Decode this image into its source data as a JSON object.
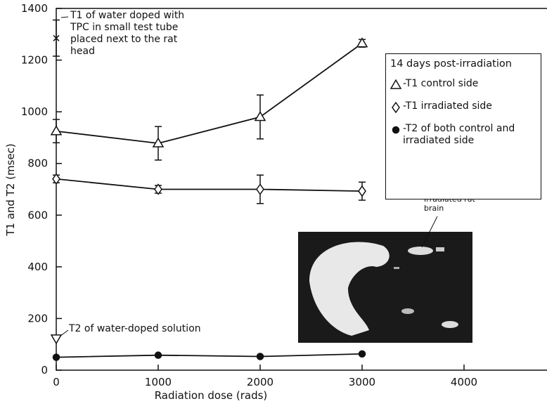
{
  "chart_data": {
    "type": "line",
    "x_label": "Radiation dose (rads)",
    "y_label": "T1 and T2 (msec)",
    "xlim": [
      0,
      4800
    ],
    "xticks": [
      0,
      1000,
      2000,
      3000,
      4000
    ],
    "ylim": [
      0,
      1400
    ],
    "yticks": [
      0,
      200,
      400,
      600,
      800,
      1000,
      1200,
      1400
    ],
    "legend_title": "14 days post-irradiation",
    "legend_position": "upper right",
    "x": [
      0,
      1000,
      2000,
      3000
    ],
    "series": [
      {
        "name": "-T1 control side",
        "marker": "triangle",
        "color": "#111111",
        "values": [
          925,
          878,
          980,
          1265
        ],
        "errors": [
          45,
          65,
          85,
          15
        ]
      },
      {
        "name": "-T1 irradiated side",
        "marker": "diamond",
        "color": "#111111",
        "values": [
          740,
          700,
          700,
          693
        ],
        "errors": [
          15,
          15,
          55,
          35
        ]
      },
      {
        "name": "-T2 of both control and irradiated side",
        "marker": "circle",
        "color": "#111111",
        "values": [
          50,
          58,
          53,
          63
        ]
      }
    ],
    "reference_points": [
      {
        "x": 0,
        "y": 1285,
        "error": 70,
        "marker": "cross",
        "label": "T1 of water doped with TPC in small test tube placed next to the rat head"
      },
      {
        "x": 0,
        "y": 120,
        "marker": "triangle-down",
        "label": "T2 of water-doped solution"
      }
    ],
    "inset_label": "Irradiated rat brain"
  }
}
